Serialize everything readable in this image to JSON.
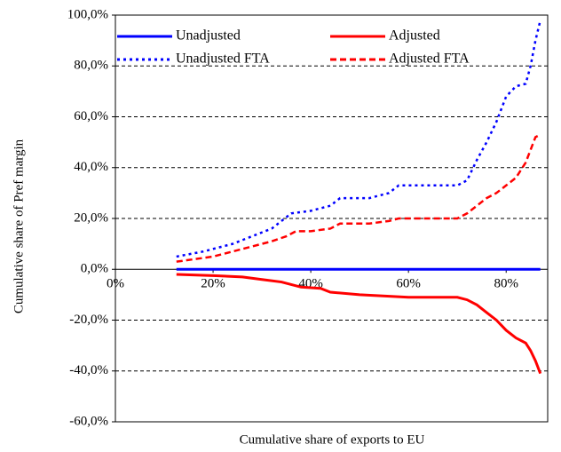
{
  "chart_data": {
    "type": "line",
    "xlabel": "Cumulative share of exports to EU",
    "ylabel": "Cumulative share of Pref margin",
    "xlim": [
      0,
      88.5
    ],
    "ylim": [
      -60,
      100
    ],
    "xticks": [
      {
        "value": 0,
        "label": "0%"
      },
      {
        "value": 20,
        "label": "20%"
      },
      {
        "value": 40,
        "label": "40%"
      },
      {
        "value": 60,
        "label": "60%"
      },
      {
        "value": 80,
        "label": "80%"
      }
    ],
    "yticks": [
      {
        "value": -60,
        "label": "-60,0%"
      },
      {
        "value": -40,
        "label": "-40,0%"
      },
      {
        "value": -20,
        "label": "-20,0%"
      },
      {
        "value": 0,
        "label": "0,0%"
      },
      {
        "value": 20,
        "label": "20,0%"
      },
      {
        "value": 40,
        "label": "40,0%"
      },
      {
        "value": 60,
        "label": "60,0%"
      },
      {
        "value": 80,
        "label": "80,0%"
      },
      {
        "value": 100,
        "label": "100,0%"
      }
    ],
    "grid": true,
    "series": [
      {
        "name": "Unadjusted",
        "color": "#0000ff",
        "style": "solid",
        "x": [
          12.5,
          87
        ],
        "values": [
          0,
          0
        ]
      },
      {
        "name": "Adjusted",
        "color": "#ff0000",
        "style": "solid",
        "x": [
          12.5,
          20,
          26,
          30,
          34,
          36,
          38,
          42,
          44,
          50,
          60,
          70,
          72,
          74,
          76,
          78,
          80,
          82,
          84,
          85,
          86,
          87
        ],
        "values": [
          -2,
          -2.5,
          -3,
          -4,
          -5,
          -6,
          -7,
          -7.5,
          -9,
          -10,
          -11,
          -11,
          -12,
          -14,
          -17,
          -20,
          -24,
          -27,
          -29,
          -32,
          -36,
          -41
        ]
      },
      {
        "name": "Unadjusted FTA",
        "color": "#0000ff",
        "style": "dotted",
        "x": [
          12.5,
          18,
          20,
          24,
          28,
          32,
          34,
          36,
          40,
          44,
          46,
          52,
          56,
          58,
          64,
          70,
          72,
          74,
          76,
          78,
          80,
          82,
          84,
          85,
          86,
          87
        ],
        "values": [
          5,
          7,
          8,
          10,
          13,
          16,
          19,
          22,
          23,
          25,
          28,
          28,
          30,
          33,
          33,
          33,
          35,
          43,
          50,
          58,
          68,
          72,
          73,
          80,
          90,
          98
        ]
      },
      {
        "name": "Adjusted FTA",
        "color": "#ff0000",
        "style": "dashed",
        "x": [
          12.5,
          20,
          24,
          28,
          32,
          35,
          37,
          40,
          44,
          46,
          52,
          56,
          58,
          64,
          70,
          72,
          74,
          76,
          78,
          80,
          82,
          84,
          85,
          86,
          87
        ],
        "values": [
          3,
          5,
          7,
          9,
          11,
          13,
          15,
          15,
          16,
          18,
          18,
          19,
          20,
          20,
          20,
          22,
          25,
          28,
          30,
          33,
          36,
          42,
          47,
          52,
          53
        ]
      }
    ]
  }
}
